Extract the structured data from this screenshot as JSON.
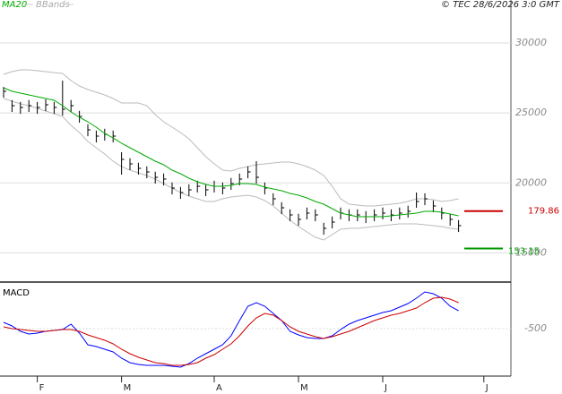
{
  "chart_data": [
    {
      "type": "ohlc",
      "source": "© TEC 28/6/2026 3:0 GMT",
      "categories": [
        null,
        null,
        null,
        null,
        "F",
        null,
        null,
        null,
        null,
        null,
        null,
        null,
        null,
        null,
        "M",
        null,
        null,
        null,
        null,
        null,
        null,
        null,
        null,
        null,
        null,
        "A",
        null,
        null,
        null,
        null,
        null,
        null,
        null,
        null,
        null,
        "M",
        null,
        null,
        null,
        null,
        null,
        null,
        null,
        null,
        null,
        "J",
        null,
        null,
        null,
        null,
        null,
        null,
        null,
        null,
        null,
        null,
        null,
        "J",
        null,
        null
      ],
      "bar_color": "#000000",
      "high": [
        26864,
        25920,
        25790,
        25920,
        25790,
        25980,
        25790,
        27312,
        25920,
        25150,
        24190,
        23740,
        23870,
        23740,
        22192,
        21760,
        21440,
        21180,
        20800,
        20670,
        20030,
        19710,
        19900,
        20160,
        19900,
        20160,
        20030,
        20350,
        20670,
        21180,
        21552,
        20030,
        19260,
        18620,
        18110,
        17790,
        18240,
        18110,
        17150,
        17600,
        18240,
        18110,
        18110,
        17980,
        18110,
        18240,
        18110,
        18240,
        18370,
        19312,
        19260,
        18750,
        18240,
        17790,
        17340,
        null,
        null,
        null,
        null,
        null
      ],
      "low": [
        26090,
        25070,
        24940,
        25070,
        24940,
        25130,
        24940,
        24810,
        25070,
        24300,
        23340,
        22890,
        23020,
        22890,
        20592,
        20910,
        20590,
        20330,
        19950,
        19820,
        19180,
        18860,
        19050,
        19310,
        19050,
        19310,
        19180,
        19500,
        19820,
        20330,
        19950,
        19180,
        18410,
        17770,
        17260,
        16940,
        17390,
        17260,
        16300,
        16750,
        17390,
        17260,
        17260,
        17130,
        17260,
        17390,
        17260,
        17390,
        17520,
        18220,
        18410,
        17900,
        17390,
        16940,
        16490,
        null,
        null,
        null,
        null,
        null
      ],
      "close": [
        26544,
        25520,
        25392,
        25520,
        25392,
        25584,
        25392,
        25264,
        25520,
        24752,
        23792,
        23344,
        23472,
        23344,
        21680,
        21360,
        21040,
        20784,
        20400,
        20272,
        19632,
        19312,
        19504,
        19760,
        19504,
        19760,
        19632,
        19952,
        20272,
        20784,
        20400,
        19632,
        18864,
        18224,
        17712,
        17392,
        17840,
        17712,
        16752,
        17200,
        17840,
        17712,
        17712,
        17584,
        17712,
        17840,
        17712,
        17840,
        17968,
        18672,
        18864,
        18352,
        17840,
        17392,
        16944,
        null,
        null,
        null,
        null,
        null
      ],
      "series": [
        {
          "name": "MA20",
          "color": "#00aa00",
          "values": [
            26800,
            26544,
            26416,
            26288,
            26160,
            26032,
            25904,
            25520,
            25072,
            24688,
            24368,
            23984,
            23536,
            23216,
            22832,
            22512,
            22192,
            21872,
            21552,
            21296,
            20912,
            20656,
            20336,
            20080,
            19888,
            19760,
            19760,
            19824,
            19952,
            19952,
            19888,
            19696,
            19568,
            19440,
            19248,
            19120,
            18928,
            18672,
            18480,
            18160,
            17840,
            17712,
            17584,
            17584,
            17584,
            17584,
            17648,
            17712,
            17776,
            17840,
            17968,
            17968,
            17904,
            17776,
            17648,
            null,
            null,
            null,
            null,
            null
          ]
        },
        {
          "name": "BBands",
          "color": "#bbbbbb",
          "upper": [
            27760,
            27952,
            28080,
            28080,
            28016,
            27952,
            27888,
            27824,
            27312,
            26928,
            26672,
            26480,
            26288,
            26032,
            25712,
            25712,
            25712,
            25520,
            24880,
            24368,
            23984,
            23600,
            23152,
            22512,
            21872,
            21360,
            20912,
            20848,
            21040,
            21168,
            21296,
            21360,
            21424,
            21488,
            21488,
            21360,
            21168,
            20912,
            20528,
            19760,
            18864,
            18480,
            18416,
            18352,
            18352,
            18416,
            18480,
            18544,
            18672,
            18864,
            18864,
            18800,
            18672,
            18736,
            18864,
            null,
            null,
            null,
            null,
            null
          ],
          "lower": [
            26032,
            25840,
            25648,
            25520,
            25328,
            25136,
            24944,
            24752,
            24112,
            23600,
            22960,
            22512,
            22064,
            21552,
            21168,
            20912,
            20720,
            20528,
            20272,
            19952,
            19632,
            19312,
            19056,
            18864,
            18672,
            18672,
            18864,
            18992,
            19056,
            19120,
            18992,
            18736,
            18352,
            17840,
            17328,
            16880,
            16496,
            16112,
            15920,
            16304,
            16688,
            16752,
            16752,
            16816,
            16880,
            16944,
            17008,
            17072,
            17072,
            17072,
            17008,
            16944,
            16880,
            16752,
            16688,
            null,
            null,
            null,
            null,
            null
          ]
        }
      ],
      "levels": [
        {
          "label": "179.86",
          "value": 17986,
          "color": "#cc0000"
        },
        {
          "label": "153.15",
          "value": 15315,
          "color": "#009900"
        }
      ],
      "ylim": [
        13104,
        32176
      ],
      "yticks": [
        15000,
        20000,
        25000,
        30000
      ],
      "grid": true
    },
    {
      "type": "line",
      "title": "MACD",
      "series": [
        {
          "color": "#0000ff",
          "values": [
            -360,
            -440,
            -560,
            -620,
            -600,
            -560,
            -540,
            -520,
            -400,
            -600,
            -860,
            -900,
            -960,
            -1020,
            -1160,
            -1260,
            -1300,
            -1320,
            -1320,
            -1320,
            -1340,
            -1360,
            -1280,
            -1160,
            -1060,
            -960,
            -860,
            -660,
            -320,
            0,
            80,
            0,
            -160,
            -320,
            -560,
            -640,
            -700,
            -720,
            -720,
            -660,
            -520,
            -400,
            -320,
            -260,
            -200,
            -140,
            -100,
            -20,
            60,
            180,
            320,
            280,
            180,
            0,
            -100,
            null,
            null,
            null,
            null,
            null
          ]
        },
        {
          "color": "#cc0000",
          "values": [
            -460,
            -500,
            -520,
            -540,
            -560,
            -560,
            -540,
            -520,
            -520,
            -560,
            -640,
            -700,
            -760,
            -840,
            -960,
            -1060,
            -1140,
            -1200,
            -1260,
            -1280,
            -1320,
            -1320,
            -1300,
            -1260,
            -1160,
            -1080,
            -960,
            -840,
            -660,
            -440,
            -260,
            -160,
            -200,
            -320,
            -460,
            -560,
            -620,
            -680,
            -720,
            -680,
            -620,
            -560,
            -480,
            -400,
            -320,
            -260,
            -200,
            -160,
            -100,
            -40,
            80,
            180,
            200,
            160,
            80,
            null,
            null,
            null,
            null,
            null
          ]
        }
      ],
      "ylim": [
        -1520,
        480
      ],
      "yticks": [
        -500
      ],
      "grid": true
    }
  ]
}
